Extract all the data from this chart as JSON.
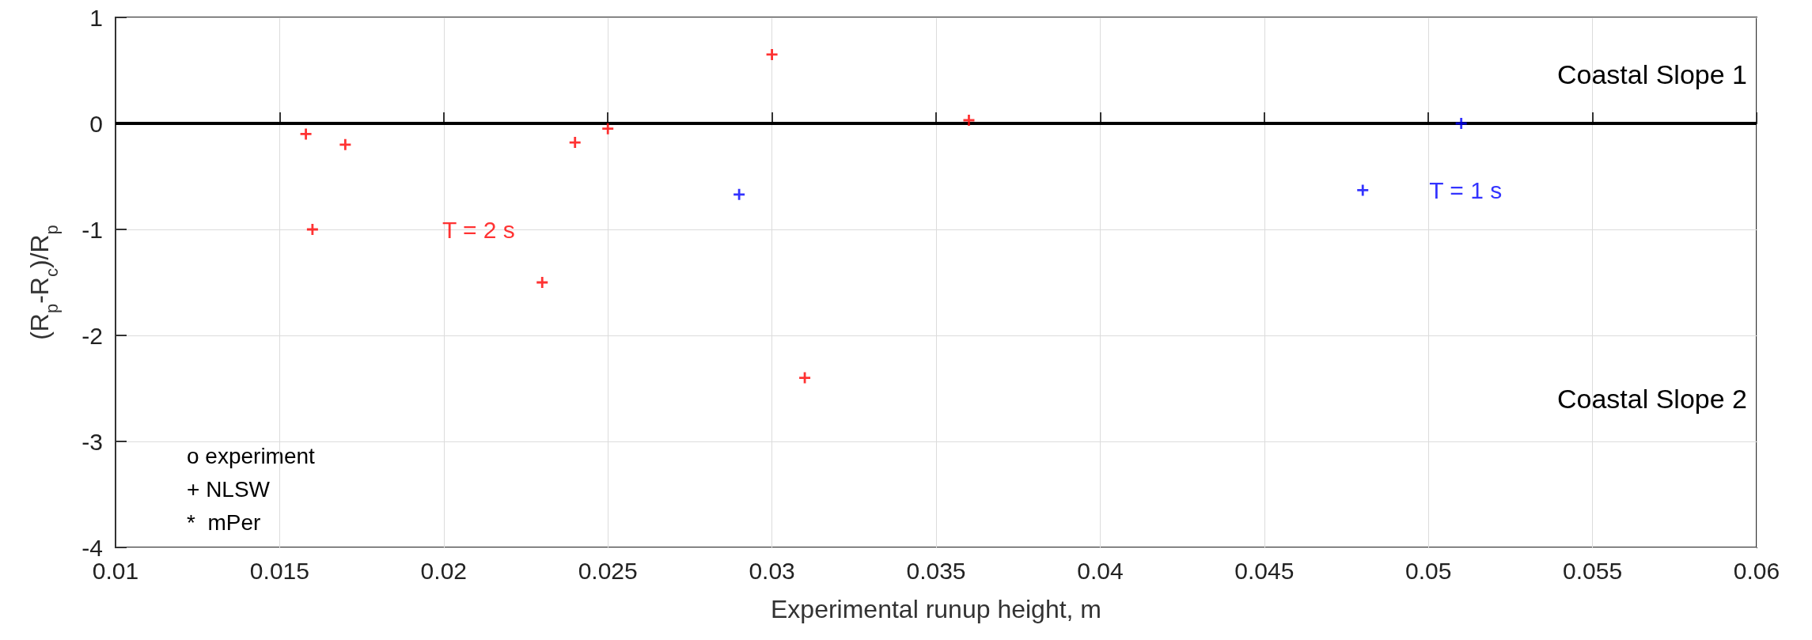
{
  "chart_data": {
    "type": "scatter",
    "xlabel": "Experimental runup height, m",
    "ylabel": "(R$_{p}$-R$_{c}$)/R$_{p}$",
    "series": [
      {
        "name": "T = 2 s",
        "color": "#ff0000",
        "x": [
          0.0158,
          0.016,
          0.017,
          0.023,
          0.024,
          0.025,
          0.03,
          0.031,
          0.036
        ],
        "values": [
          -0.1,
          -1.0,
          -0.2,
          -1.5,
          -0.18,
          -0.05,
          0.65,
          -2.4,
          0.03
        ]
      },
      {
        "name": "T = 1 s",
        "color": "#0000ff",
        "x": [
          0.029,
          0.048,
          0.051
        ],
        "values": [
          -0.67,
          -0.63,
          0.0
        ]
      }
    ],
    "xlim": [
      0.01,
      0.06
    ],
    "xticks": [
      0.01,
      0.015,
      0.02,
      0.025,
      0.03,
      0.035,
      0.04,
      0.045,
      0.05,
      0.055,
      0.06
    ],
    "ylim": [
      -4,
      1
    ],
    "yticks": [
      -4,
      -3,
      -2,
      -1,
      0,
      1
    ],
    "ref_lines": [
      {
        "axis": "y",
        "value": 0,
        "color": "#000000",
        "line_style": "solid"
      }
    ],
    "annotations": [
      "Coastal Slope 1",
      "Coastal Slope 2",
      "o experiment",
      "+ NLSW",
      "*  mPer"
    ],
    "grid": true,
    "marker": "cross",
    "legend": false
  }
}
